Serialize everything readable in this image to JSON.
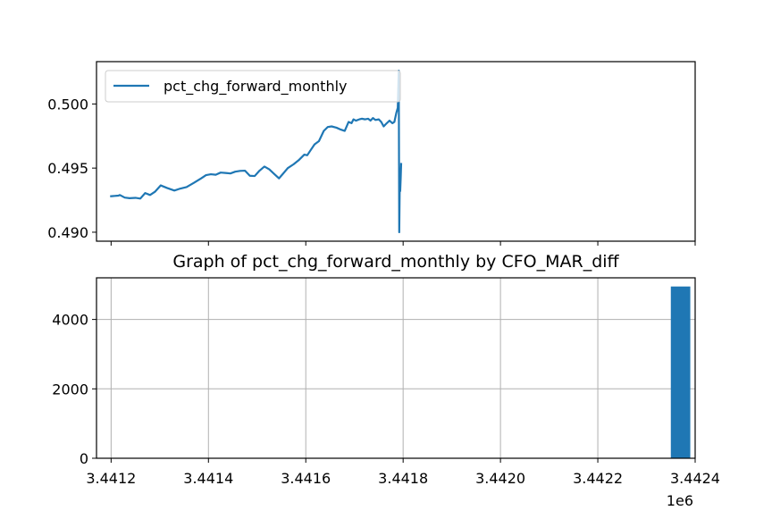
{
  "colors": {
    "series": "#1f77b4",
    "axes": "#000000",
    "grid": "#b0b0b0"
  },
  "chart_data": [
    {
      "type": "line",
      "title": "",
      "legend": {
        "position": "top-left",
        "entries": [
          "pct_chg_forward_monthly"
        ]
      },
      "grid": false,
      "xlim": [
        3.44117,
        3.4424
      ],
      "ylim": [
        0.4893,
        0.5033
      ],
      "x_offset_label": "",
      "xticks": [
        3.4412,
        3.4414,
        3.4416,
        3.4418,
        3.442,
        3.4422,
        3.4424
      ],
      "yticks": [
        {
          "v": 0.49,
          "label": "0.490"
        },
        {
          "v": 0.495,
          "label": "0.495"
        },
        {
          "v": 0.5,
          "label": "0.500"
        }
      ],
      "series": [
        {
          "name": "pct_chg_forward_monthly",
          "points": [
            [
              3.441198,
              0.4928
            ],
            [
              3.441215,
              0.49285
            ],
            [
              3.441218,
              0.4929
            ],
            [
              3.441228,
              0.4927
            ],
            [
              3.441238,
              0.49265
            ],
            [
              3.44125,
              0.49268
            ],
            [
              3.44126,
              0.49262
            ],
            [
              3.44127,
              0.49305
            ],
            [
              3.44128,
              0.4929
            ],
            [
              3.44129,
              0.49315
            ],
            [
              3.441302,
              0.49365
            ],
            [
              3.441315,
              0.49345
            ],
            [
              3.44133,
              0.49325
            ],
            [
              3.441342,
              0.4934
            ],
            [
              3.441355,
              0.49352
            ],
            [
              3.44137,
              0.49385
            ],
            [
              3.441385,
              0.4942
            ],
            [
              3.441395,
              0.49445
            ],
            [
              3.441405,
              0.49452
            ],
            [
              3.441415,
              0.49448
            ],
            [
              3.441425,
              0.49465
            ],
            [
              3.441435,
              0.49462
            ],
            [
              3.441445,
              0.49458
            ],
            [
              3.441455,
              0.49472
            ],
            [
              3.441465,
              0.49478
            ],
            [
              3.441475,
              0.4948
            ],
            [
              3.441485,
              0.4944
            ],
            [
              3.441495,
              0.49438
            ],
            [
              3.441505,
              0.4948
            ],
            [
              3.441515,
              0.49512
            ],
            [
              3.441525,
              0.4949
            ],
            [
              3.441535,
              0.49455
            ],
            [
              3.441545,
              0.4942
            ],
            [
              3.441553,
              0.49455
            ],
            [
              3.441563,
              0.495
            ],
            [
              3.441575,
              0.4953
            ],
            [
              3.441585,
              0.4956
            ],
            [
              3.441597,
              0.49605
            ],
            [
              3.441603,
              0.496
            ],
            [
              3.44161,
              0.4964
            ],
            [
              3.441618,
              0.49685
            ],
            [
              3.441627,
              0.4971
            ],
            [
              3.441637,
              0.4979
            ],
            [
              3.441645,
              0.4982
            ],
            [
              3.441653,
              0.49825
            ],
            [
              3.441663,
              0.49815
            ],
            [
              3.441672,
              0.498
            ],
            [
              3.44168,
              0.4979
            ],
            [
              3.441688,
              0.4986
            ],
            [
              3.441694,
              0.4985
            ],
            [
              3.441698,
              0.4988
            ],
            [
              3.441703,
              0.4987
            ],
            [
              3.44171,
              0.4988
            ],
            [
              3.441715,
              0.49885
            ],
            [
              3.441722,
              0.4988
            ],
            [
              3.441728,
              0.49885
            ],
            [
              3.441733,
              0.4987
            ],
            [
              3.441738,
              0.4989
            ],
            [
              3.441743,
              0.49875
            ],
            [
              3.44175,
              0.4988
            ],
            [
              3.441755,
              0.4986
            ],
            [
              3.44176,
              0.49825
            ],
            [
              3.441765,
              0.49845
            ],
            [
              3.441772,
              0.4987
            ],
            [
              3.441778,
              0.4985
            ],
            [
              3.441782,
              0.4986
            ],
            [
              3.441786,
              0.4993
            ],
            [
              3.441789,
              0.4997
            ],
            [
              3.441791,
              0.5026
            ],
            [
              3.441792,
              0.49
            ],
            [
              3.441793,
              0.4935
            ],
            [
              3.441794,
              0.4932
            ],
            [
              3.441795,
              0.4942
            ],
            [
              3.441796,
              0.4954
            ]
          ]
        }
      ]
    },
    {
      "type": "bar",
      "title": "Graph of pct_chg_forward_monthly by CFO_MAR_diff",
      "grid": true,
      "xlim": [
        3.44117,
        3.4424
      ],
      "ylim": [
        0,
        5200
      ],
      "x_offset_label": "1e6",
      "xticks": [
        {
          "v": 3.4412,
          "label": "3.4412"
        },
        {
          "v": 3.4414,
          "label": "3.4414"
        },
        {
          "v": 3.4416,
          "label": "3.4416"
        },
        {
          "v": 3.4418,
          "label": "3.4418"
        },
        {
          "v": 3.442,
          "label": "3.4420"
        },
        {
          "v": 3.4422,
          "label": "3.4422"
        },
        {
          "v": 3.4424,
          "label": "3.4424"
        }
      ],
      "yticks": [
        {
          "v": 0,
          "label": "0"
        },
        {
          "v": 2000,
          "label": "2000"
        },
        {
          "v": 4000,
          "label": "4000"
        }
      ],
      "bars": [
        {
          "x0": 3.44235,
          "x1": 3.44239,
          "value": 4950
        }
      ]
    }
  ]
}
